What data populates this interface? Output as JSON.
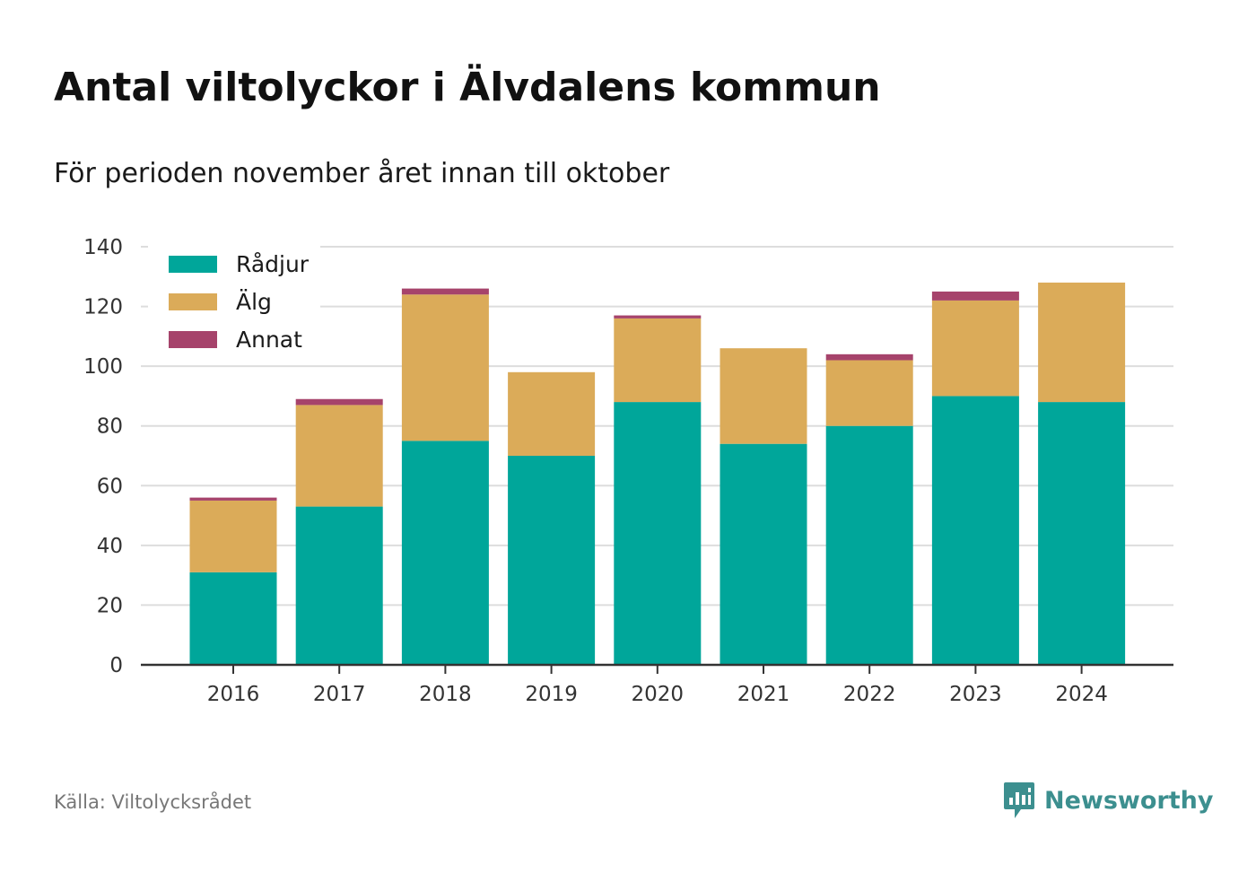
{
  "title": "Antal viltolyckor i Älvdalens kommun",
  "subtitle": "För perioden november året innan till oktober",
  "source": "Källa: Viltolycksrådet",
  "brand": "Newsworthy",
  "colors": {
    "radjur": "#00a69a",
    "alg": "#dbab59",
    "annat": "#a6436b",
    "grid": "#dddddd",
    "axis": "#333333",
    "brand": "#3c8f8f"
  },
  "chart_data": {
    "type": "bar",
    "stacked": true,
    "categories": [
      "2016",
      "2017",
      "2018",
      "2019",
      "2020",
      "2021",
      "2022",
      "2023",
      "2024"
    ],
    "series": [
      {
        "name": "Rådjur",
        "values": [
          31,
          53,
          75,
          70,
          88,
          74,
          80,
          90,
          88
        ]
      },
      {
        "name": "Älg",
        "values": [
          24,
          34,
          49,
          28,
          28,
          32,
          22,
          32,
          40
        ]
      },
      {
        "name": "Annat",
        "values": [
          1,
          2,
          2,
          0,
          1,
          0,
          2,
          3,
          0
        ]
      }
    ],
    "ylim": [
      0,
      140
    ],
    "yticks": [
      0,
      20,
      40,
      60,
      80,
      100,
      120,
      140
    ],
    "grid": true,
    "legend": "top-left"
  }
}
